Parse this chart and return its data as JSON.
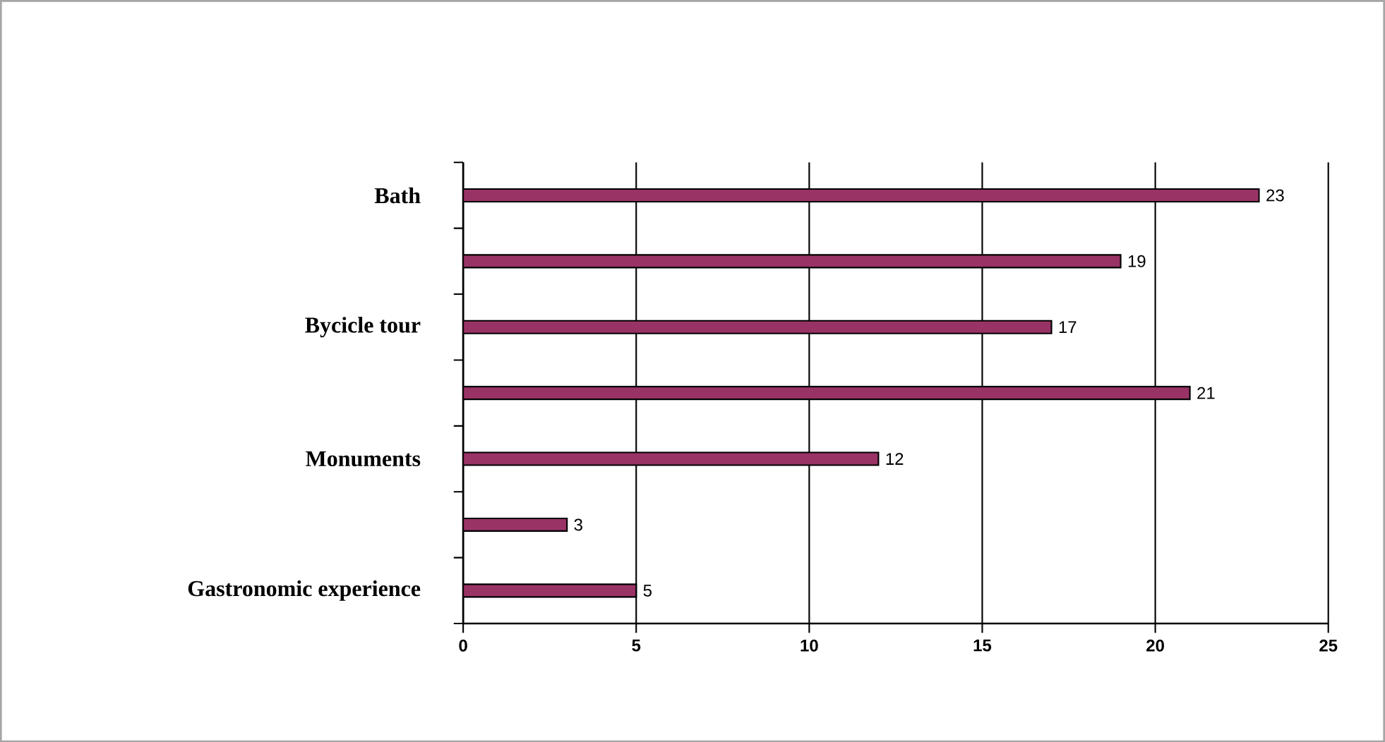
{
  "chart_data": {
    "type": "bar",
    "orientation": "horizontal",
    "categories": [
      "Bath",
      null,
      "Bycicle tour",
      null,
      "Monuments",
      null,
      "Gastronomic experience"
    ],
    "values": [
      23,
      19,
      17,
      21,
      12,
      3,
      5
    ],
    "color": "#993366",
    "xlim": [
      0,
      25
    ],
    "xticks": [
      0,
      5,
      10,
      15,
      20,
      25
    ],
    "grid": "x",
    "data_labels": true
  }
}
